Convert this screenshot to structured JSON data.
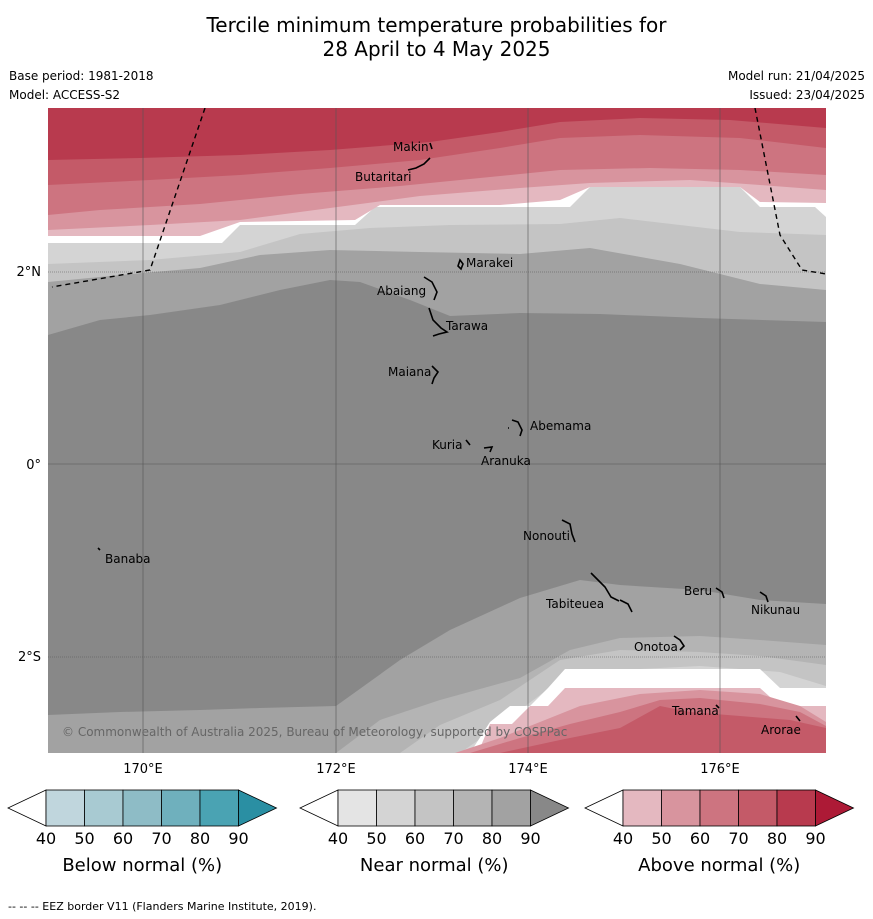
{
  "title_line1": "Tercile minimum temperature probabilities for",
  "title_line2": "28 April to 4 May 2025",
  "base_period": "Base period: 1981-2018",
  "model": "Model: ACCESS-S2",
  "model_run": "Model run: 21/04/2025",
  "issued": "Issued: 23/04/2025",
  "copyright": "© Commonwealth of Australia 2025, Bureau of Meteorology, supported by COSPPac",
  "lon_labels": [
    "170°E",
    "172°E",
    "174°E",
    "176°E"
  ],
  "lat_labels": [
    "2°N",
    "0°",
    "2°S"
  ],
  "islands": [
    "Makin",
    "Butaritari",
    "Marakei",
    "Abaiang",
    "Tarawa",
    "Maiana",
    "Abemama",
    "Kuria",
    "Aranuka",
    "Nonouti",
    "Banaba",
    "Tabiteuea",
    "Beru",
    "Nikunau",
    "Onotoa",
    "Tamana",
    "Arorae"
  ],
  "colorbars": [
    {
      "label": "Below normal (%)",
      "ticks": [
        "40",
        "50",
        "60",
        "70",
        "80",
        "90"
      ],
      "colors": [
        "#c0d6dd",
        "#a8cad2",
        "#8ebcc6",
        "#6fb0bd",
        "#4aa3b3",
        "#2a8fa3"
      ]
    },
    {
      "label": "Near normal (%)",
      "ticks": [
        "40",
        "50",
        "60",
        "70",
        "80",
        "90"
      ],
      "colors": [
        "#e4e4e4",
        "#d4d4d4",
        "#c4c4c4",
        "#b4b4b4",
        "#a2a2a2",
        "#888888"
      ]
    },
    {
      "label": "Above normal (%)",
      "ticks": [
        "40",
        "50",
        "60",
        "70",
        "80",
        "90"
      ],
      "colors": [
        "#e4b8c0",
        "#d8949e",
        "#cd7480",
        "#c45a68",
        "#b83a4e",
        "#ad1a36"
      ]
    }
  ],
  "footnote": "--  --  -- EEZ border V11 (Flanders Marine Institute, 2019)."
}
